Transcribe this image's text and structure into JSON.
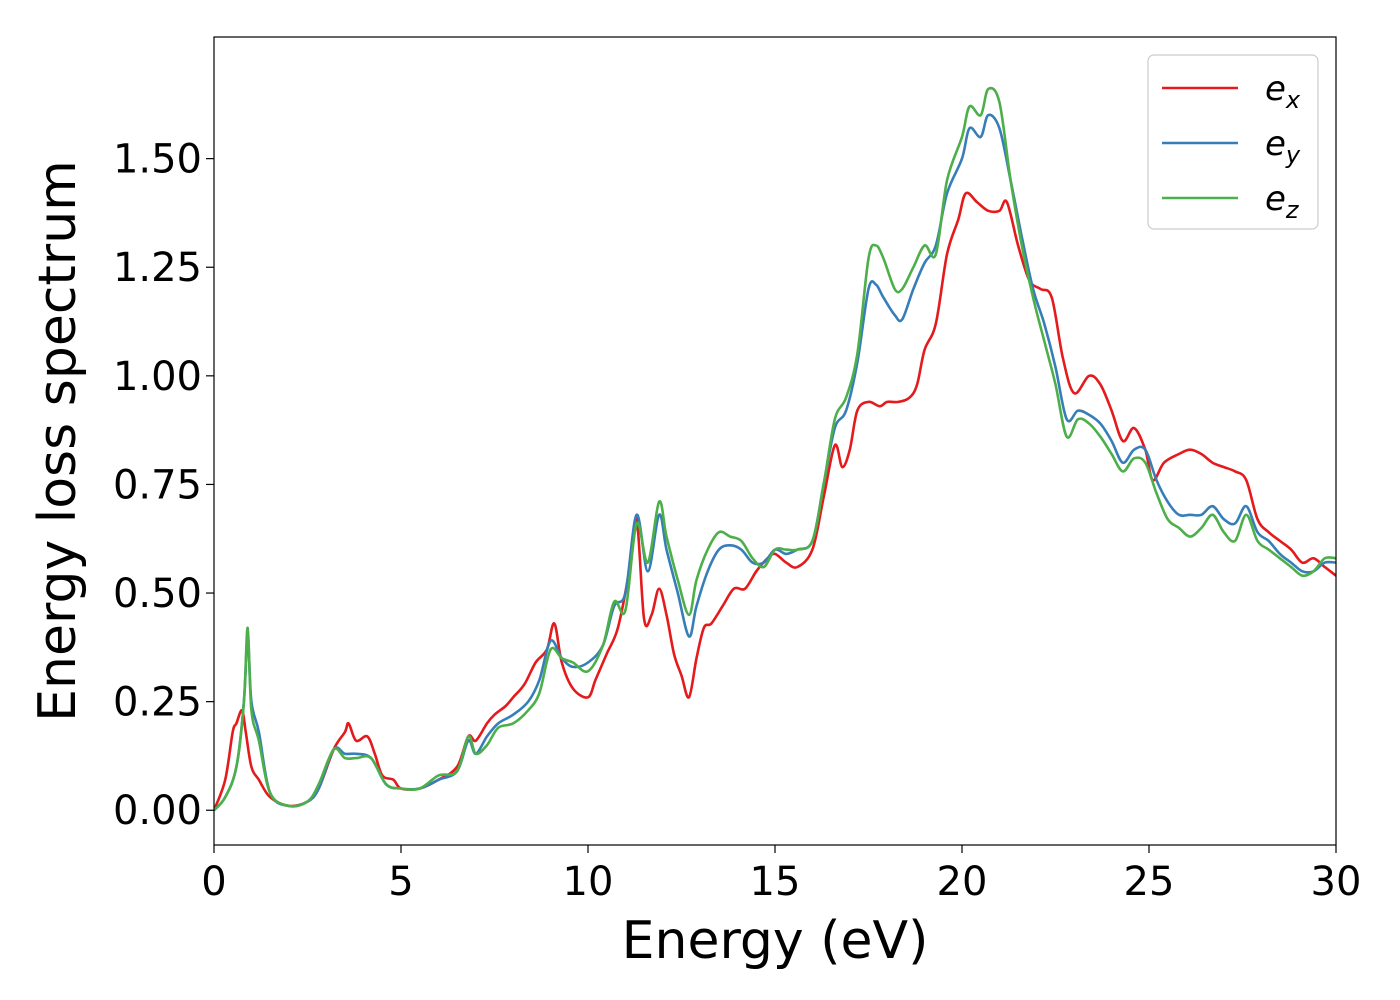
{
  "chart_data": {
    "type": "line",
    "xlabel": "Energy (eV)",
    "ylabel": "Energy loss spectrum",
    "xlim": [
      0,
      30
    ],
    "ylim": [
      -0.08,
      1.78
    ],
    "xticks": [
      0,
      5,
      10,
      15,
      20,
      25,
      30
    ],
    "xtick_labels": [
      "0",
      "5",
      "10",
      "15",
      "20",
      "25",
      "30"
    ],
    "yticks": [
      0.0,
      0.25,
      0.5,
      0.75,
      1.0,
      1.25,
      1.5
    ],
    "ytick_labels": [
      "0.00",
      "0.25",
      "0.50",
      "0.75",
      "1.00",
      "1.25",
      "1.50"
    ],
    "grid": false,
    "legend_position": "top-right",
    "series": [
      {
        "name": "e",
        "subscript": "x",
        "color": "#e41a1c",
        "points": [
          [
            0,
            0
          ],
          [
            0.3,
            0.07
          ],
          [
            0.5,
            0.18
          ],
          [
            0.6,
            0.2
          ],
          [
            0.75,
            0.23
          ],
          [
            0.85,
            0.18
          ],
          [
            1.0,
            0.1
          ],
          [
            1.2,
            0.07
          ],
          [
            1.5,
            0.03
          ],
          [
            2.0,
            0.01
          ],
          [
            2.5,
            0.02
          ],
          [
            2.8,
            0.05
          ],
          [
            3.2,
            0.14
          ],
          [
            3.5,
            0.18
          ],
          [
            3.6,
            0.2
          ],
          [
            3.8,
            0.16
          ],
          [
            4.1,
            0.17
          ],
          [
            4.3,
            0.13
          ],
          [
            4.5,
            0.08
          ],
          [
            4.8,
            0.07
          ],
          [
            5.0,
            0.05
          ],
          [
            5.5,
            0.05
          ],
          [
            6.0,
            0.07
          ],
          [
            6.5,
            0.1
          ],
          [
            6.8,
            0.17
          ],
          [
            7.0,
            0.16
          ],
          [
            7.3,
            0.2
          ],
          [
            7.5,
            0.22
          ],
          [
            7.8,
            0.24
          ],
          [
            8.0,
            0.26
          ],
          [
            8.3,
            0.29
          ],
          [
            8.6,
            0.34
          ],
          [
            8.9,
            0.37
          ],
          [
            9.1,
            0.43
          ],
          [
            9.3,
            0.34
          ],
          [
            9.6,
            0.28
          ],
          [
            10.0,
            0.26
          ],
          [
            10.2,
            0.3
          ],
          [
            10.5,
            0.36
          ],
          [
            10.8,
            0.42
          ],
          [
            11.1,
            0.55
          ],
          [
            11.3,
            0.67
          ],
          [
            11.5,
            0.44
          ],
          [
            11.7,
            0.45
          ],
          [
            11.9,
            0.51
          ],
          [
            12.1,
            0.45
          ],
          [
            12.3,
            0.36
          ],
          [
            12.5,
            0.31
          ],
          [
            12.7,
            0.26
          ],
          [
            12.9,
            0.35
          ],
          [
            13.1,
            0.42
          ],
          [
            13.3,
            0.43
          ],
          [
            13.6,
            0.47
          ],
          [
            13.9,
            0.51
          ],
          [
            14.2,
            0.51
          ],
          [
            14.5,
            0.55
          ],
          [
            14.8,
            0.58
          ],
          [
            15.0,
            0.59
          ],
          [
            15.3,
            0.57
          ],
          [
            15.6,
            0.56
          ],
          [
            16.0,
            0.6
          ],
          [
            16.3,
            0.72
          ],
          [
            16.6,
            0.84
          ],
          [
            16.8,
            0.79
          ],
          [
            17.0,
            0.83
          ],
          [
            17.2,
            0.92
          ],
          [
            17.5,
            0.94
          ],
          [
            17.8,
            0.93
          ],
          [
            18.0,
            0.94
          ],
          [
            18.3,
            0.94
          ],
          [
            18.6,
            0.95
          ],
          [
            18.8,
            0.98
          ],
          [
            19.0,
            1.06
          ],
          [
            19.3,
            1.12
          ],
          [
            19.6,
            1.28
          ],
          [
            19.9,
            1.36
          ],
          [
            20.1,
            1.42
          ],
          [
            20.4,
            1.4
          ],
          [
            20.7,
            1.38
          ],
          [
            21.0,
            1.38
          ],
          [
            21.2,
            1.4
          ],
          [
            21.5,
            1.3
          ],
          [
            21.8,
            1.22
          ],
          [
            22.1,
            1.2
          ],
          [
            22.4,
            1.18
          ],
          [
            22.7,
            1.04
          ],
          [
            23.0,
            0.96
          ],
          [
            23.4,
            1.0
          ],
          [
            23.7,
            0.98
          ],
          [
            24.0,
            0.92
          ],
          [
            24.3,
            0.85
          ],
          [
            24.6,
            0.88
          ],
          [
            24.9,
            0.83
          ],
          [
            25.1,
            0.76
          ],
          [
            25.4,
            0.8
          ],
          [
            25.8,
            0.82
          ],
          [
            26.1,
            0.83
          ],
          [
            26.4,
            0.82
          ],
          [
            26.7,
            0.8
          ],
          [
            27.0,
            0.79
          ],
          [
            27.3,
            0.78
          ],
          [
            27.6,
            0.76
          ],
          [
            27.9,
            0.67
          ],
          [
            28.2,
            0.64
          ],
          [
            28.5,
            0.62
          ],
          [
            28.8,
            0.6
          ],
          [
            29.1,
            0.57
          ],
          [
            29.4,
            0.58
          ],
          [
            29.7,
            0.56
          ],
          [
            30.0,
            0.54
          ]
        ]
      },
      {
        "name": "e",
        "subscript": "y",
        "color": "#377eb8",
        "points": [
          [
            0,
            0
          ],
          [
            0.3,
            0.03
          ],
          [
            0.6,
            0.1
          ],
          [
            0.8,
            0.25
          ],
          [
            0.9,
            0.4
          ],
          [
            1.0,
            0.25
          ],
          [
            1.2,
            0.18
          ],
          [
            1.5,
            0.04
          ],
          [
            2.0,
            0.01
          ],
          [
            2.5,
            0.02
          ],
          [
            2.8,
            0.05
          ],
          [
            3.2,
            0.14
          ],
          [
            3.5,
            0.13
          ],
          [
            3.8,
            0.13
          ],
          [
            4.2,
            0.12
          ],
          [
            4.6,
            0.06
          ],
          [
            5.0,
            0.05
          ],
          [
            5.5,
            0.05
          ],
          [
            6.0,
            0.07
          ],
          [
            6.5,
            0.09
          ],
          [
            6.8,
            0.16
          ],
          [
            7.0,
            0.13
          ],
          [
            7.3,
            0.17
          ],
          [
            7.6,
            0.2
          ],
          [
            8.0,
            0.22
          ],
          [
            8.4,
            0.25
          ],
          [
            8.7,
            0.3
          ],
          [
            9.0,
            0.39
          ],
          [
            9.3,
            0.35
          ],
          [
            9.6,
            0.33
          ],
          [
            10.0,
            0.34
          ],
          [
            10.4,
            0.38
          ],
          [
            10.7,
            0.47
          ],
          [
            11.0,
            0.5
          ],
          [
            11.3,
            0.68
          ],
          [
            11.6,
            0.55
          ],
          [
            11.9,
            0.68
          ],
          [
            12.1,
            0.6
          ],
          [
            12.4,
            0.5
          ],
          [
            12.7,
            0.4
          ],
          [
            12.9,
            0.47
          ],
          [
            13.2,
            0.55
          ],
          [
            13.5,
            0.6
          ],
          [
            13.8,
            0.61
          ],
          [
            14.1,
            0.6
          ],
          [
            14.4,
            0.57
          ],
          [
            14.7,
            0.57
          ],
          [
            15.0,
            0.6
          ],
          [
            15.3,
            0.59
          ],
          [
            15.6,
            0.6
          ],
          [
            16.0,
            0.62
          ],
          [
            16.3,
            0.75
          ],
          [
            16.6,
            0.88
          ],
          [
            16.9,
            0.92
          ],
          [
            17.2,
            1.03
          ],
          [
            17.5,
            1.2
          ],
          [
            17.7,
            1.21
          ],
          [
            17.9,
            1.18
          ],
          [
            18.2,
            1.14
          ],
          [
            18.4,
            1.13
          ],
          [
            18.7,
            1.2
          ],
          [
            19.0,
            1.26
          ],
          [
            19.3,
            1.3
          ],
          [
            19.6,
            1.42
          ],
          [
            20.0,
            1.5
          ],
          [
            20.2,
            1.57
          ],
          [
            20.5,
            1.55
          ],
          [
            20.7,
            1.6
          ],
          [
            21.0,
            1.57
          ],
          [
            21.3,
            1.45
          ],
          [
            21.6,
            1.32
          ],
          [
            21.9,
            1.2
          ],
          [
            22.2,
            1.12
          ],
          [
            22.5,
            1.02
          ],
          [
            22.8,
            0.9
          ],
          [
            23.1,
            0.92
          ],
          [
            23.4,
            0.91
          ],
          [
            23.7,
            0.89
          ],
          [
            24.0,
            0.85
          ],
          [
            24.3,
            0.8
          ],
          [
            24.6,
            0.83
          ],
          [
            24.9,
            0.83
          ],
          [
            25.2,
            0.76
          ],
          [
            25.5,
            0.71
          ],
          [
            25.8,
            0.68
          ],
          [
            26.1,
            0.68
          ],
          [
            26.4,
            0.68
          ],
          [
            26.7,
            0.7
          ],
          [
            27.0,
            0.67
          ],
          [
            27.3,
            0.66
          ],
          [
            27.6,
            0.7
          ],
          [
            27.9,
            0.64
          ],
          [
            28.2,
            0.62
          ],
          [
            28.5,
            0.59
          ],
          [
            28.8,
            0.57
          ],
          [
            29.1,
            0.55
          ],
          [
            29.4,
            0.55
          ],
          [
            29.7,
            0.57
          ],
          [
            30.0,
            0.57
          ]
        ]
      },
      {
        "name": "e",
        "subscript": "z",
        "color": "#4daf4a",
        "points": [
          [
            0,
            0
          ],
          [
            0.3,
            0.03
          ],
          [
            0.6,
            0.1
          ],
          [
            0.8,
            0.25
          ],
          [
            0.9,
            0.42
          ],
          [
            1.0,
            0.23
          ],
          [
            1.2,
            0.16
          ],
          [
            1.5,
            0.04
          ],
          [
            2.0,
            0.01
          ],
          [
            2.5,
            0.02
          ],
          [
            2.8,
            0.06
          ],
          [
            3.2,
            0.14
          ],
          [
            3.5,
            0.12
          ],
          [
            3.8,
            0.12
          ],
          [
            4.2,
            0.12
          ],
          [
            4.6,
            0.06
          ],
          [
            5.0,
            0.05
          ],
          [
            5.5,
            0.05
          ],
          [
            6.0,
            0.08
          ],
          [
            6.5,
            0.09
          ],
          [
            6.8,
            0.17
          ],
          [
            7.0,
            0.13
          ],
          [
            7.3,
            0.15
          ],
          [
            7.6,
            0.19
          ],
          [
            8.0,
            0.2
          ],
          [
            8.4,
            0.23
          ],
          [
            8.7,
            0.27
          ],
          [
            9.0,
            0.37
          ],
          [
            9.3,
            0.35
          ],
          [
            9.6,
            0.34
          ],
          [
            10.0,
            0.32
          ],
          [
            10.4,
            0.38
          ],
          [
            10.7,
            0.48
          ],
          [
            11.0,
            0.46
          ],
          [
            11.3,
            0.66
          ],
          [
            11.6,
            0.57
          ],
          [
            11.9,
            0.71
          ],
          [
            12.1,
            0.63
          ],
          [
            12.4,
            0.53
          ],
          [
            12.7,
            0.45
          ],
          [
            12.9,
            0.53
          ],
          [
            13.2,
            0.6
          ],
          [
            13.5,
            0.64
          ],
          [
            13.8,
            0.63
          ],
          [
            14.1,
            0.62
          ],
          [
            14.4,
            0.58
          ],
          [
            14.7,
            0.56
          ],
          [
            15.0,
            0.6
          ],
          [
            15.3,
            0.6
          ],
          [
            15.6,
            0.6
          ],
          [
            16.0,
            0.62
          ],
          [
            16.3,
            0.75
          ],
          [
            16.6,
            0.9
          ],
          [
            16.9,
            0.95
          ],
          [
            17.2,
            1.05
          ],
          [
            17.5,
            1.27
          ],
          [
            17.7,
            1.3
          ],
          [
            17.9,
            1.27
          ],
          [
            18.2,
            1.2
          ],
          [
            18.4,
            1.2
          ],
          [
            18.7,
            1.25
          ],
          [
            19.0,
            1.3
          ],
          [
            19.3,
            1.28
          ],
          [
            19.6,
            1.45
          ],
          [
            20.0,
            1.55
          ],
          [
            20.2,
            1.62
          ],
          [
            20.5,
            1.6
          ],
          [
            20.7,
            1.66
          ],
          [
            21.0,
            1.63
          ],
          [
            21.3,
            1.45
          ],
          [
            21.6,
            1.3
          ],
          [
            21.9,
            1.18
          ],
          [
            22.2,
            1.08
          ],
          [
            22.5,
            0.98
          ],
          [
            22.8,
            0.86
          ],
          [
            23.1,
            0.9
          ],
          [
            23.4,
            0.89
          ],
          [
            23.7,
            0.86
          ],
          [
            24.0,
            0.82
          ],
          [
            24.3,
            0.78
          ],
          [
            24.6,
            0.81
          ],
          [
            24.9,
            0.8
          ],
          [
            25.2,
            0.73
          ],
          [
            25.5,
            0.67
          ],
          [
            25.8,
            0.65
          ],
          [
            26.1,
            0.63
          ],
          [
            26.4,
            0.65
          ],
          [
            26.7,
            0.68
          ],
          [
            27.0,
            0.64
          ],
          [
            27.3,
            0.62
          ],
          [
            27.6,
            0.68
          ],
          [
            27.9,
            0.62
          ],
          [
            28.2,
            0.6
          ],
          [
            28.5,
            0.58
          ],
          [
            28.8,
            0.56
          ],
          [
            29.1,
            0.54
          ],
          [
            29.4,
            0.55
          ],
          [
            29.7,
            0.58
          ],
          [
            30.0,
            0.58
          ]
        ]
      }
    ]
  }
}
